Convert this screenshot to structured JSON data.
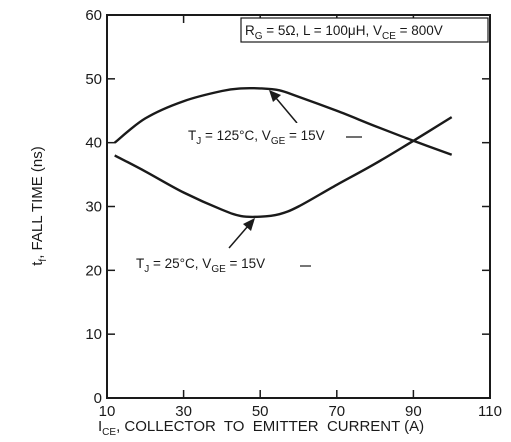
{
  "chart_data": {
    "type": "line",
    "title": "",
    "xlabel": {
      "main": "I",
      "sub": "CE",
      "rest": ", COLLECTOR  TO  EMITTER  CURRENT (A)"
    },
    "ylabel": {
      "main": "t",
      "sub": "f",
      "rest": ", FALL TIME (ns)"
    },
    "xlim": [
      10,
      110
    ],
    "ylim": [
      0,
      60
    ],
    "xticks": [
      10,
      30,
      50,
      70,
      90,
      110
    ],
    "yticks": [
      0,
      10,
      20,
      30,
      40,
      50,
      60
    ],
    "grid": false,
    "conditions": {
      "pre": "R",
      "sub1": "G",
      "mid": " = 5Ω, L = 100μH, V",
      "sub2": "CE",
      "post": " = 800V"
    },
    "series": [
      {
        "label": {
          "pre": "T",
          "sub1": "J",
          "mid": " = 125°C, V",
          "sub2": "GE",
          "post": " = 15V"
        },
        "x": [
          12,
          20,
          30,
          40,
          45,
          50,
          55,
          60,
          70,
          80,
          90,
          100
        ],
        "y": [
          40,
          43.8,
          46.5,
          48.1,
          48.5,
          48.5,
          48.2,
          47.2,
          45,
          42.6,
          40.3,
          38.1
        ]
      },
      {
        "label": {
          "pre": "T",
          "sub1": "J",
          "mid": " = 25°C, V",
          "sub2": "GE",
          "post": " = 15V"
        },
        "x": [
          12,
          20,
          30,
          40,
          45,
          50,
          55,
          60,
          70,
          80,
          90,
          100
        ],
        "y": [
          38,
          35.5,
          32.2,
          29.5,
          28.5,
          28.4,
          28.8,
          30,
          33.4,
          36.7,
          40.3,
          44
        ]
      }
    ]
  }
}
